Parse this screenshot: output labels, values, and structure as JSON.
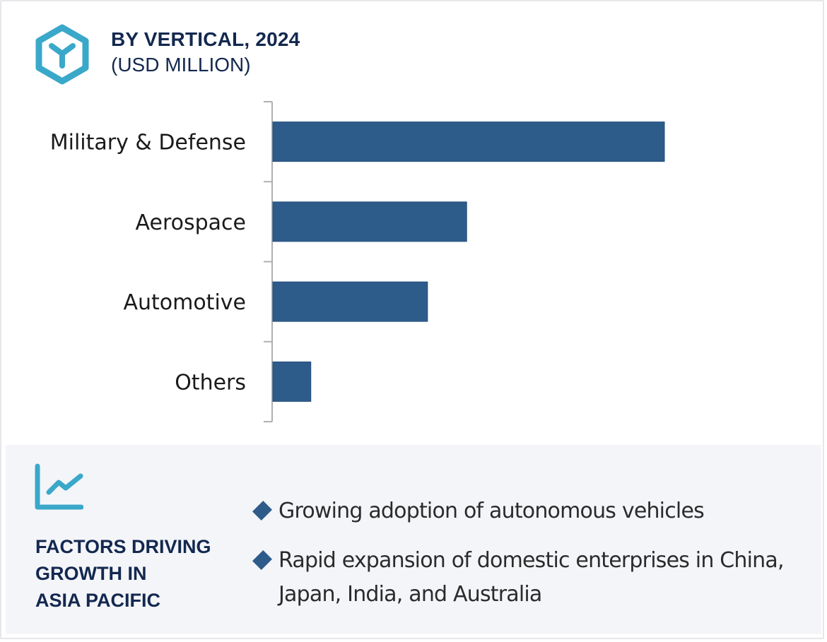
{
  "header": {
    "logo_icon": "hexagon-y-icon",
    "title": "BY VERTICAL, 2024",
    "subtitle": "(USD MILLION)"
  },
  "colors": {
    "bar": "#2e5c8a",
    "accent": "#3aa8c9",
    "title": "#13284f",
    "axis": "#b0b0b0",
    "panel_bg": "#f4f5f9"
  },
  "chart_data": {
    "type": "bar",
    "orientation": "horizontal",
    "title": "BY VERTICAL, 2024",
    "subtitle": "(USD MILLION)",
    "categories": [
      "Military & Defense",
      "Aerospace",
      "Automotive",
      "Others"
    ],
    "values": [
      100,
      49.5,
      39.5,
      9.7
    ],
    "value_note": "relative bar lengths (Military & Defense = 100); no value axis or data labels shown",
    "xlabel": "",
    "ylabel": "",
    "xlim": [
      0,
      100
    ],
    "grid": false,
    "legend": "none"
  },
  "factors": {
    "icon": "line-chart-growth-icon",
    "title_lines": [
      "FACTORS DRIVING",
      "GROWTH IN",
      "ASIA PACIFIC"
    ],
    "bullet_icon": "diamond-icon",
    "items": [
      "Growing adoption of autonomous vehicles",
      "Rapid expansion of domestic enterprises in China, Japan, India, and Australia"
    ]
  }
}
